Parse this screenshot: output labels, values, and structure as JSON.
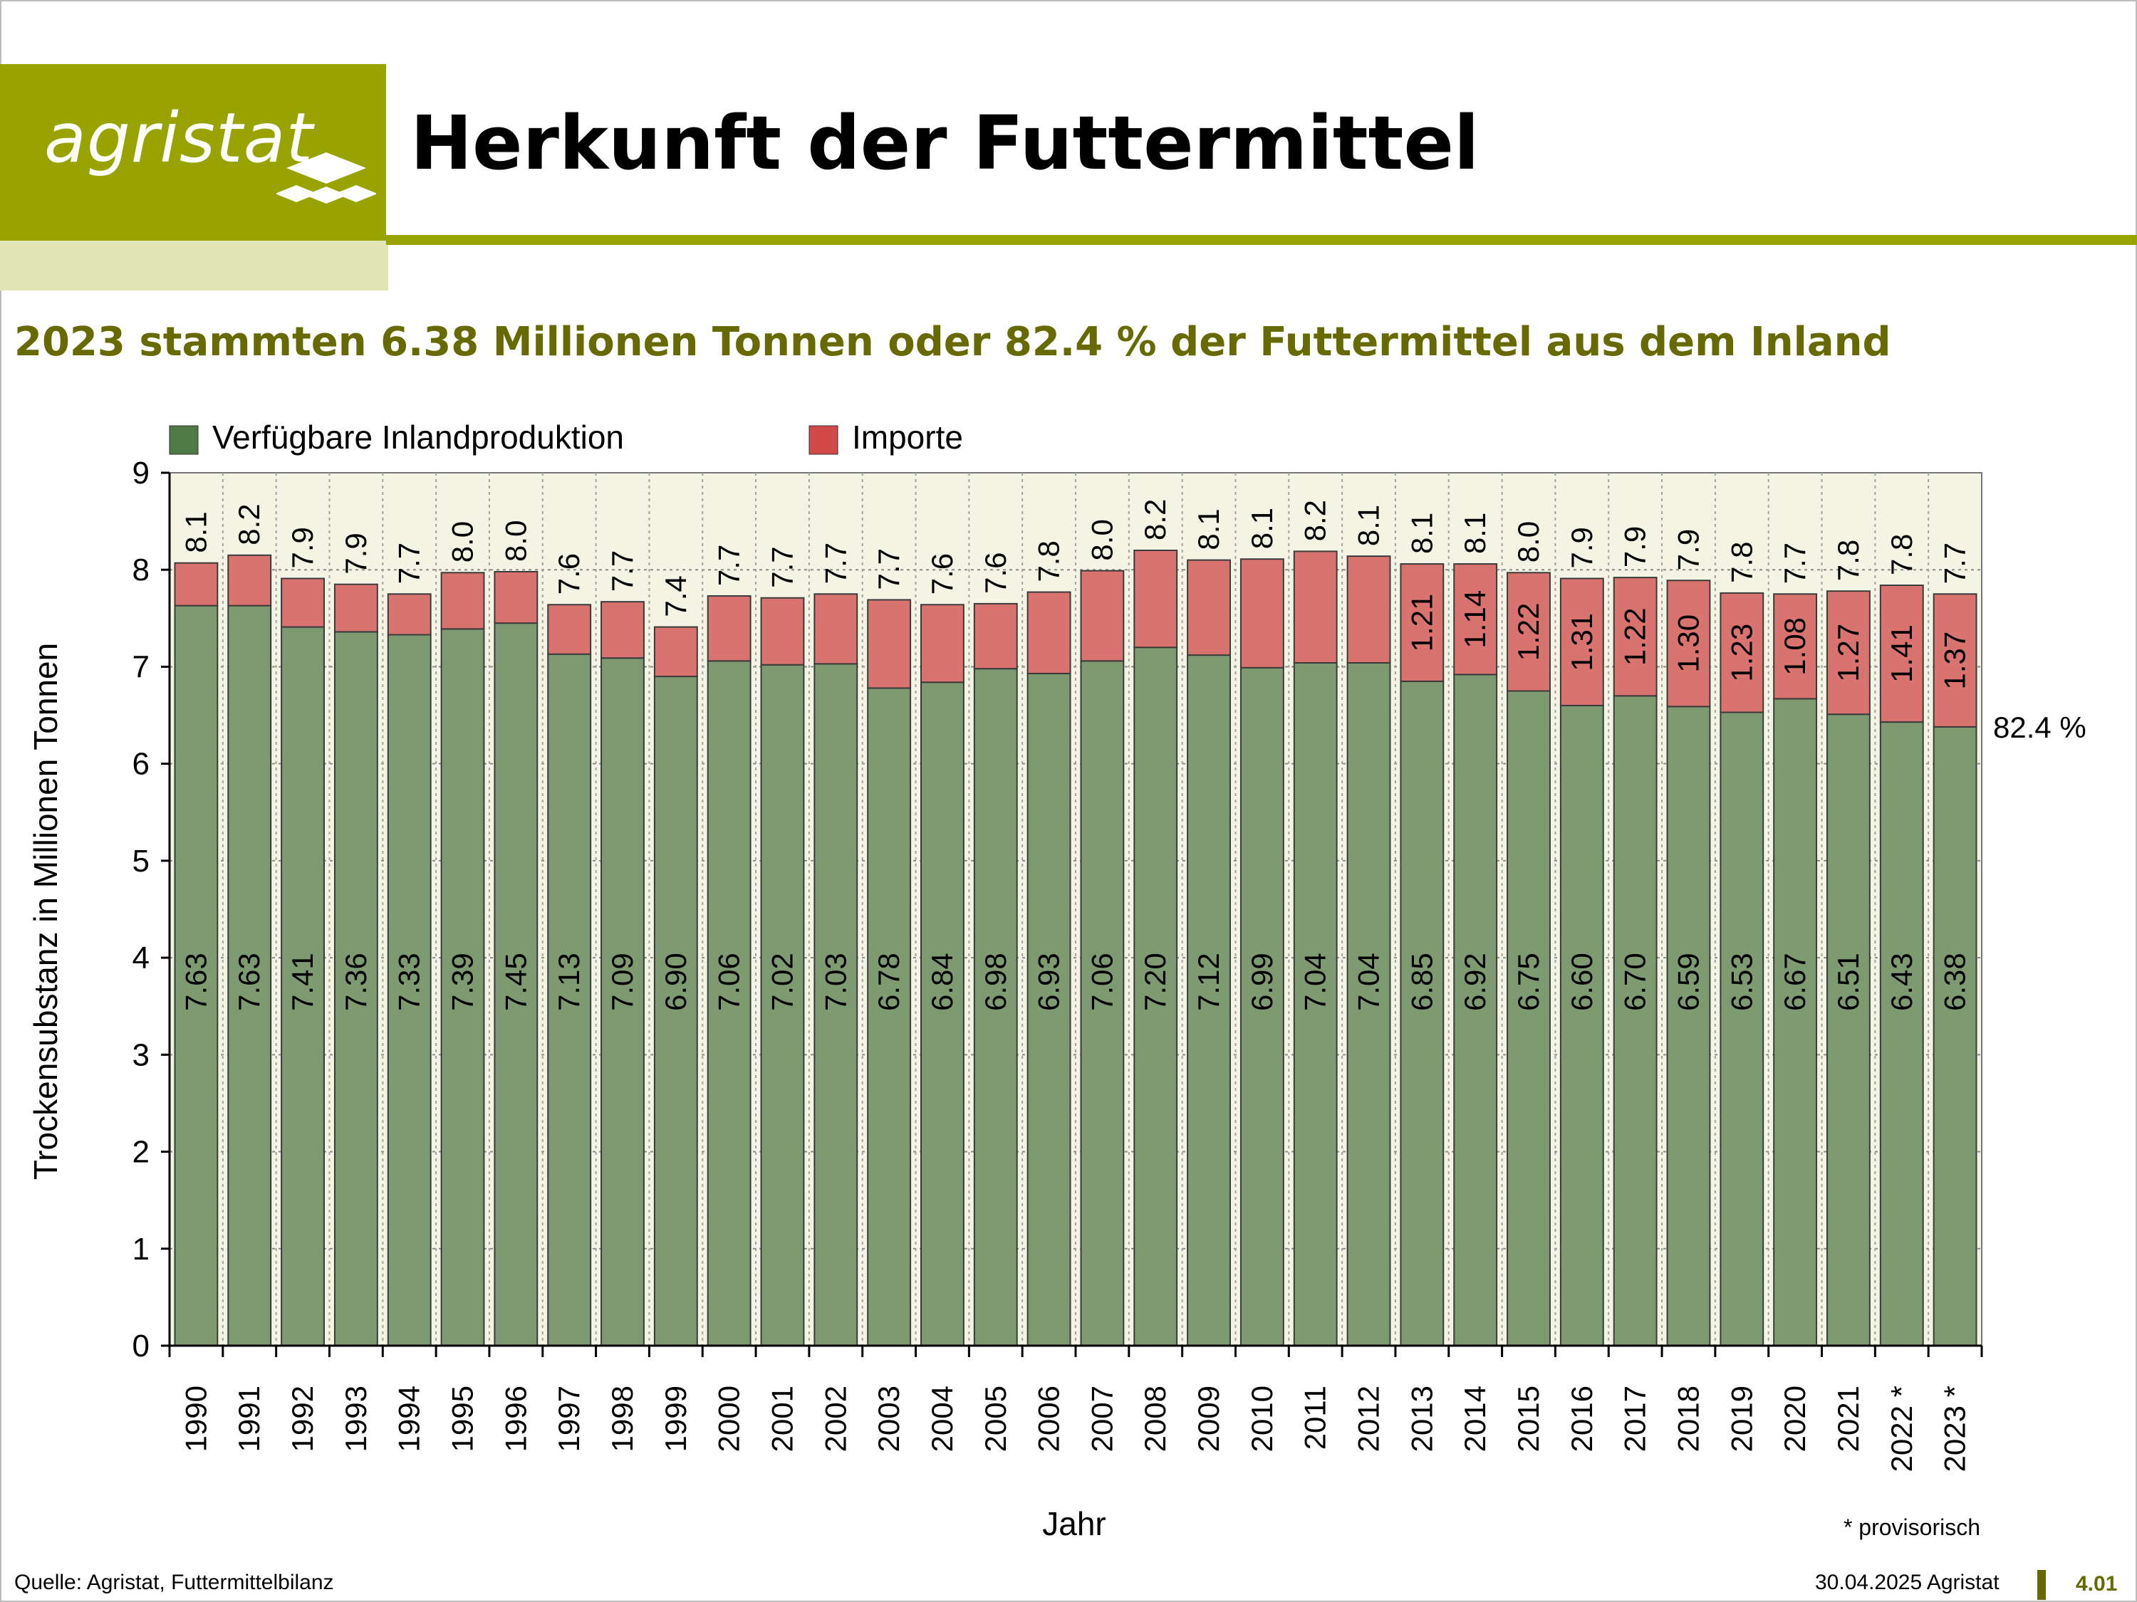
{
  "header": {
    "logo_text": "agristat",
    "title": "Herkunft der Futtermittel",
    "subtitle": "2023 stammten 6.38 Millionen Tonnen oder 82.4 % der Futtermittel aus dem Inland"
  },
  "chart_data": {
    "type": "bar",
    "stacked": true,
    "ylabel": "Trockensubstanz in Millionen Tonnen",
    "xlabel": "Jahr",
    "ylim": [
      0,
      9
    ],
    "yticks": [
      "0",
      "1",
      "2",
      "3",
      "4",
      "5",
      "6",
      "7",
      "8",
      "9"
    ],
    "grid": true,
    "legend": "top-left",
    "categories": [
      "1990",
      "1991",
      "1992",
      "1993",
      "1994",
      "1995",
      "1996",
      "1997",
      "1998",
      "1999",
      "2000",
      "2001",
      "2002",
      "2003",
      "2004",
      "2005",
      "2006",
      "2007",
      "2008",
      "2009",
      "2010",
      "2011",
      "2012",
      "2013",
      "2014",
      "2015",
      "2016",
      "2017",
      "2018",
      "2019",
      "2020",
      "2021",
      "2022 *",
      "2023 *"
    ],
    "series": [
      {
        "name": "Verfügbare Inlandproduktion",
        "color": "#7e9a70",
        "values": [
          7.63,
          7.63,
          7.41,
          7.36,
          7.33,
          7.39,
          7.45,
          7.13,
          7.09,
          6.9,
          7.06,
          7.02,
          7.03,
          6.78,
          6.84,
          6.98,
          6.93,
          7.06,
          7.2,
          7.12,
          6.99,
          7.04,
          7.04,
          6.85,
          6.92,
          6.75,
          6.6,
          6.7,
          6.59,
          6.53,
          6.67,
          6.51,
          6.43,
          6.38
        ],
        "labels": [
          "7.63",
          "7.63",
          "7.41",
          "7.36",
          "7.33",
          "7.39",
          "7.45",
          "7.13",
          "7.09",
          "6.90",
          "7.06",
          "7.02",
          "7.03",
          "6.78",
          "6.84",
          "6.98",
          "6.93",
          "7.06",
          "7.20",
          "7.12",
          "6.99",
          "7.04",
          "7.04",
          "6.85",
          "6.92",
          "6.75",
          "6.60",
          "6.70",
          "6.59",
          "6.53",
          "6.67",
          "6.51",
          "6.43",
          "6.38"
        ]
      },
      {
        "name": "Importe",
        "color": "#d9736f",
        "values": [
          0.44,
          0.52,
          0.5,
          0.49,
          0.42,
          0.58,
          0.53,
          0.51,
          0.58,
          0.51,
          0.67,
          0.69,
          0.72,
          0.91,
          0.8,
          0.67,
          0.84,
          0.93,
          1.0,
          0.98,
          1.12,
          1.15,
          1.1,
          1.21,
          1.14,
          1.22,
          1.31,
          1.22,
          1.3,
          1.23,
          1.08,
          1.27,
          1.41,
          1.37
        ],
        "labels": [
          "",
          "",
          "",
          "",
          "",
          "",
          "",
          "",
          "",
          "",
          "",
          "",
          "",
          "",
          "",
          "",
          "",
          "",
          "",
          "",
          "",
          "",
          "",
          "1.21",
          "1.14",
          "1.22",
          "1.31",
          "1.22",
          "1.30",
          "1.23",
          "1.08",
          "1.27",
          "1.41",
          "1.37"
        ]
      }
    ],
    "totals": [
      "8.1",
      "8.2",
      "7.9",
      "7.9",
      "7.7",
      "8.0",
      "8.0",
      "7.6",
      "7.7",
      "7.4",
      "7.7",
      "7.7",
      "7.7",
      "7.7",
      "7.6",
      "7.6",
      "7.8",
      "8.0",
      "8.2",
      "8.1",
      "8.1",
      "8.2",
      "8.1",
      "8.1",
      "8.1",
      "8.0",
      "7.9",
      "7.9",
      "7.9",
      "7.8",
      "7.7",
      "7.8",
      "7.8",
      "7.7"
    ],
    "annotation": "82.4 %",
    "footnote": "* provisorisch",
    "colors": {
      "plot_background": "#f4f4e4",
      "axis": "#000000"
    }
  },
  "footer": {
    "source": "Quelle: Agristat, Futtermittelbilanz",
    "date": "30.04.2025 Agristat",
    "page": "4.01"
  }
}
